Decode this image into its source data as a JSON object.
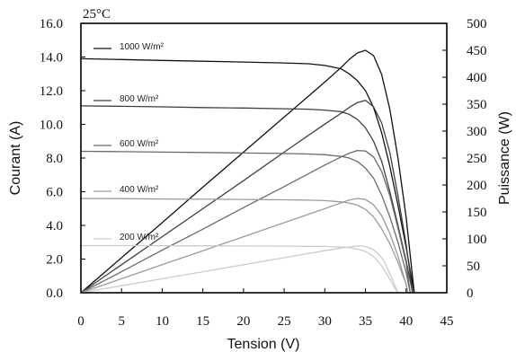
{
  "chart_data": {
    "type": "line",
    "annotation": "25°C",
    "xlabel": "Tension (V)",
    "ylabel": "Courant (A)",
    "y2label": "Puissance (W)",
    "xlim": [
      0,
      45
    ],
    "ylim": [
      0,
      16
    ],
    "y2lim": [
      0,
      500
    ],
    "xticks": [
      "0",
      "5",
      "10",
      "15",
      "20",
      "25",
      "30",
      "35",
      "40",
      "45"
    ],
    "yticks": [
      "0.0",
      "2.0",
      "4.0",
      "6.0",
      "8.0",
      "10.0",
      "12.0",
      "14.0",
      "16.0"
    ],
    "y2ticks": [
      "0",
      "50",
      "100",
      "150",
      "200",
      "250",
      "300",
      "350",
      "400",
      "450",
      "500"
    ],
    "grid": false,
    "series": [
      {
        "name": "1000 W/m²",
        "color": "#111111",
        "current": {
          "x": [
            0,
            5,
            10,
            15,
            20,
            25,
            28,
            30,
            32,
            33,
            34,
            35,
            36,
            37,
            38,
            39,
            40,
            40.5,
            41.0
          ],
          "y": [
            13.9,
            13.85,
            13.8,
            13.75,
            13.7,
            13.65,
            13.6,
            13.5,
            13.3,
            13.0,
            12.6,
            12.0,
            11.0,
            9.5,
            7.5,
            5.2,
            2.7,
            1.3,
            0
          ]
        },
        "power": {
          "x": [
            0,
            5,
            10,
            15,
            20,
            25,
            30,
            32,
            33,
            34,
            35,
            36,
            37,
            38,
            39,
            40,
            40.5,
            41.0
          ],
          "y": [
            0,
            65,
            130,
            196,
            261,
            326,
            391,
            418,
            433,
            445,
            450,
            440,
            405,
            340,
            250,
            140,
            70,
            0
          ]
        }
      },
      {
        "name": "800 W/m²",
        "color": "#3f3f3f",
        "current": {
          "x": [
            0,
            5,
            10,
            15,
            20,
            25,
            28,
            30,
            32,
            33,
            34,
            35,
            36,
            37,
            38,
            39,
            40,
            40.8
          ],
          "y": [
            11.1,
            11.07,
            11.04,
            11.0,
            10.97,
            10.93,
            10.9,
            10.85,
            10.75,
            10.6,
            10.3,
            9.8,
            9.0,
            7.8,
            6.0,
            4.0,
            1.9,
            0
          ]
        },
        "power": {
          "x": [
            0,
            5,
            10,
            15,
            20,
            25,
            30,
            32,
            33,
            34,
            35,
            36,
            37,
            38,
            39,
            40,
            40.8
          ],
          "y": [
            0,
            52,
            104,
            156,
            208,
            261,
            313,
            333,
            344,
            353,
            357,
            345,
            315,
            260,
            180,
            90,
            0
          ]
        }
      },
      {
        "name": "600 W/m²",
        "color": "#6a6a6a",
        "current": {
          "x": [
            0,
            5,
            10,
            15,
            20,
            25,
            28,
            30,
            32,
            33,
            34,
            35,
            36,
            37,
            38,
            39,
            40,
            40.5
          ],
          "y": [
            8.4,
            8.38,
            8.35,
            8.33,
            8.3,
            8.27,
            8.24,
            8.2,
            8.1,
            8.0,
            7.8,
            7.4,
            6.8,
            5.8,
            4.5,
            3.0,
            1.2,
            0
          ]
        },
        "power": {
          "x": [
            0,
            5,
            10,
            15,
            20,
            25,
            30,
            32,
            33,
            34,
            35,
            36,
            37,
            38,
            39,
            40,
            40.5
          ],
          "y": [
            0,
            39,
            79,
            118,
            158,
            197,
            237,
            252,
            259,
            264,
            263,
            252,
            225,
            180,
            120,
            55,
            0
          ]
        }
      },
      {
        "name": "400 W/m²",
        "color": "#9a9a9a",
        "current": {
          "x": [
            0,
            5,
            10,
            15,
            20,
            25,
            28,
            30,
            32,
            33,
            34,
            35,
            36,
            37,
            38,
            39,
            40,
            40.2
          ],
          "y": [
            5.6,
            5.59,
            5.57,
            5.55,
            5.54,
            5.52,
            5.5,
            5.47,
            5.4,
            5.33,
            5.2,
            4.95,
            4.5,
            3.8,
            2.9,
            1.8,
            0.5,
            0
          ]
        },
        "power": {
          "x": [
            0,
            5,
            10,
            15,
            20,
            25,
            30,
            32,
            33,
            34,
            35,
            36,
            37,
            38,
            39,
            40,
            40.2
          ],
          "y": [
            0,
            26,
            52,
            78,
            104,
            130,
            156,
            167,
            172,
            175,
            173,
            163,
            143,
            110,
            68,
            15,
            0
          ]
        }
      },
      {
        "name": "200 W/m²",
        "color": "#cccccc",
        "current": {
          "x": [
            0,
            5,
            10,
            15,
            20,
            25,
            28,
            30,
            32,
            33,
            34,
            35,
            36,
            37,
            37.5,
            38,
            38.5,
            39.0
          ],
          "y": [
            2.8,
            2.8,
            2.79,
            2.79,
            2.78,
            2.77,
            2.76,
            2.75,
            2.72,
            2.68,
            2.6,
            2.45,
            2.15,
            1.6,
            1.2,
            0.8,
            0.35,
            0
          ]
        },
        "power": {
          "x": [
            0,
            5,
            10,
            15,
            20,
            25,
            30,
            32,
            33,
            34,
            35,
            36,
            37,
            37.5,
            38,
            38.5,
            39.0
          ],
          "y": [
            0,
            13,
            26,
            39,
            52,
            65,
            78,
            83,
            85,
            87,
            86,
            80,
            65,
            52,
            35,
            18,
            0
          ]
        }
      }
    ]
  }
}
